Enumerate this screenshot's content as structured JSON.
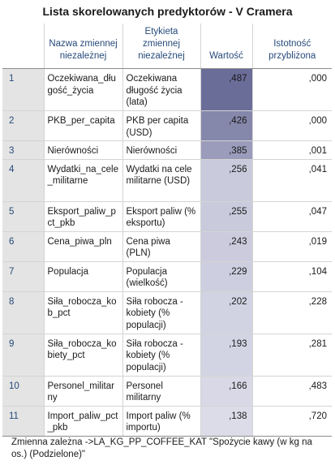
{
  "title": "Lista skorelowanych predyktorów - V Cramera",
  "headers": {
    "nazwa": "Nazwa zmiennej niezależnej",
    "etykieta": "Etykieta zmiennej niezależnej",
    "wartosc": "Wartość",
    "istotnosc": "Istotność przybliżona"
  },
  "rows": [
    {
      "n": "1",
      "name": "Oczekiwana_długość_życia",
      "label": "Oczekiwana długość życia (lata)",
      "value": ",487",
      "sig": ",000",
      "shade": "#6b6d99"
    },
    {
      "n": "2",
      "name": "PKB_per_capita",
      "label": "PKB per capita (USD)",
      "value": ",426",
      "sig": ",000",
      "shade": "#8587ab"
    },
    {
      "n": "3",
      "name": "Nierówności",
      "label": "Nierówności",
      "value": ",385",
      "sig": ",001",
      "shade": "#9b9cbb"
    },
    {
      "n": "4",
      "name": "Wydatki_na_cele_militarne",
      "label": "Wydatki na cele militarne (USD)",
      "value": ",256",
      "sig": ",041",
      "shade": "#c9cadc"
    },
    {
      "n": "5",
      "name": "Eksport_paliw_pct_pkb",
      "label": "Eksport paliw (% eksportu)",
      "value": ",255",
      "sig": ",047",
      "shade": "#c9cadc"
    },
    {
      "n": "6",
      "name": "Cena_piwa_pln",
      "label": "Cena piwa (PLN)",
      "value": ",243",
      "sig": ",019",
      "shade": "#cbcbdd"
    },
    {
      "n": "7",
      "name": "Populacja",
      "label": "Populacja (wielkość)",
      "value": ",229",
      "sig": ",104",
      "shade": "#cdcedf"
    },
    {
      "n": "8",
      "name": "Siła_robocza_kob_pct",
      "label": "Siła robocza - kobiety (% populacji)",
      "value": ",202",
      "sig": ",228",
      "shade": "#d2d3e2"
    },
    {
      "n": "9",
      "name": "Siła_robocza_kobiety_pct",
      "label": "Siła robocza - kobiety (% populacji)",
      "value": ",193",
      "sig": ",281",
      "shade": "#d3d4e3"
    },
    {
      "n": "10",
      "name": "Personel_militarny",
      "label": "Personel militarny",
      "value": ",166",
      "sig": ",483",
      "shade": "#d8d8e6"
    },
    {
      "n": "11",
      "name": "Import_paliw_pct_pkb",
      "label": "Import paliw (% importu)",
      "value": ",138",
      "sig": ",720",
      "shade": "#dcdce9"
    }
  ],
  "footnote": "Zmienna zależna ->LA_KG_PP_COFFEE_KAT \"Spożycie kawy (w kg na os.) (Podzielone)\""
}
